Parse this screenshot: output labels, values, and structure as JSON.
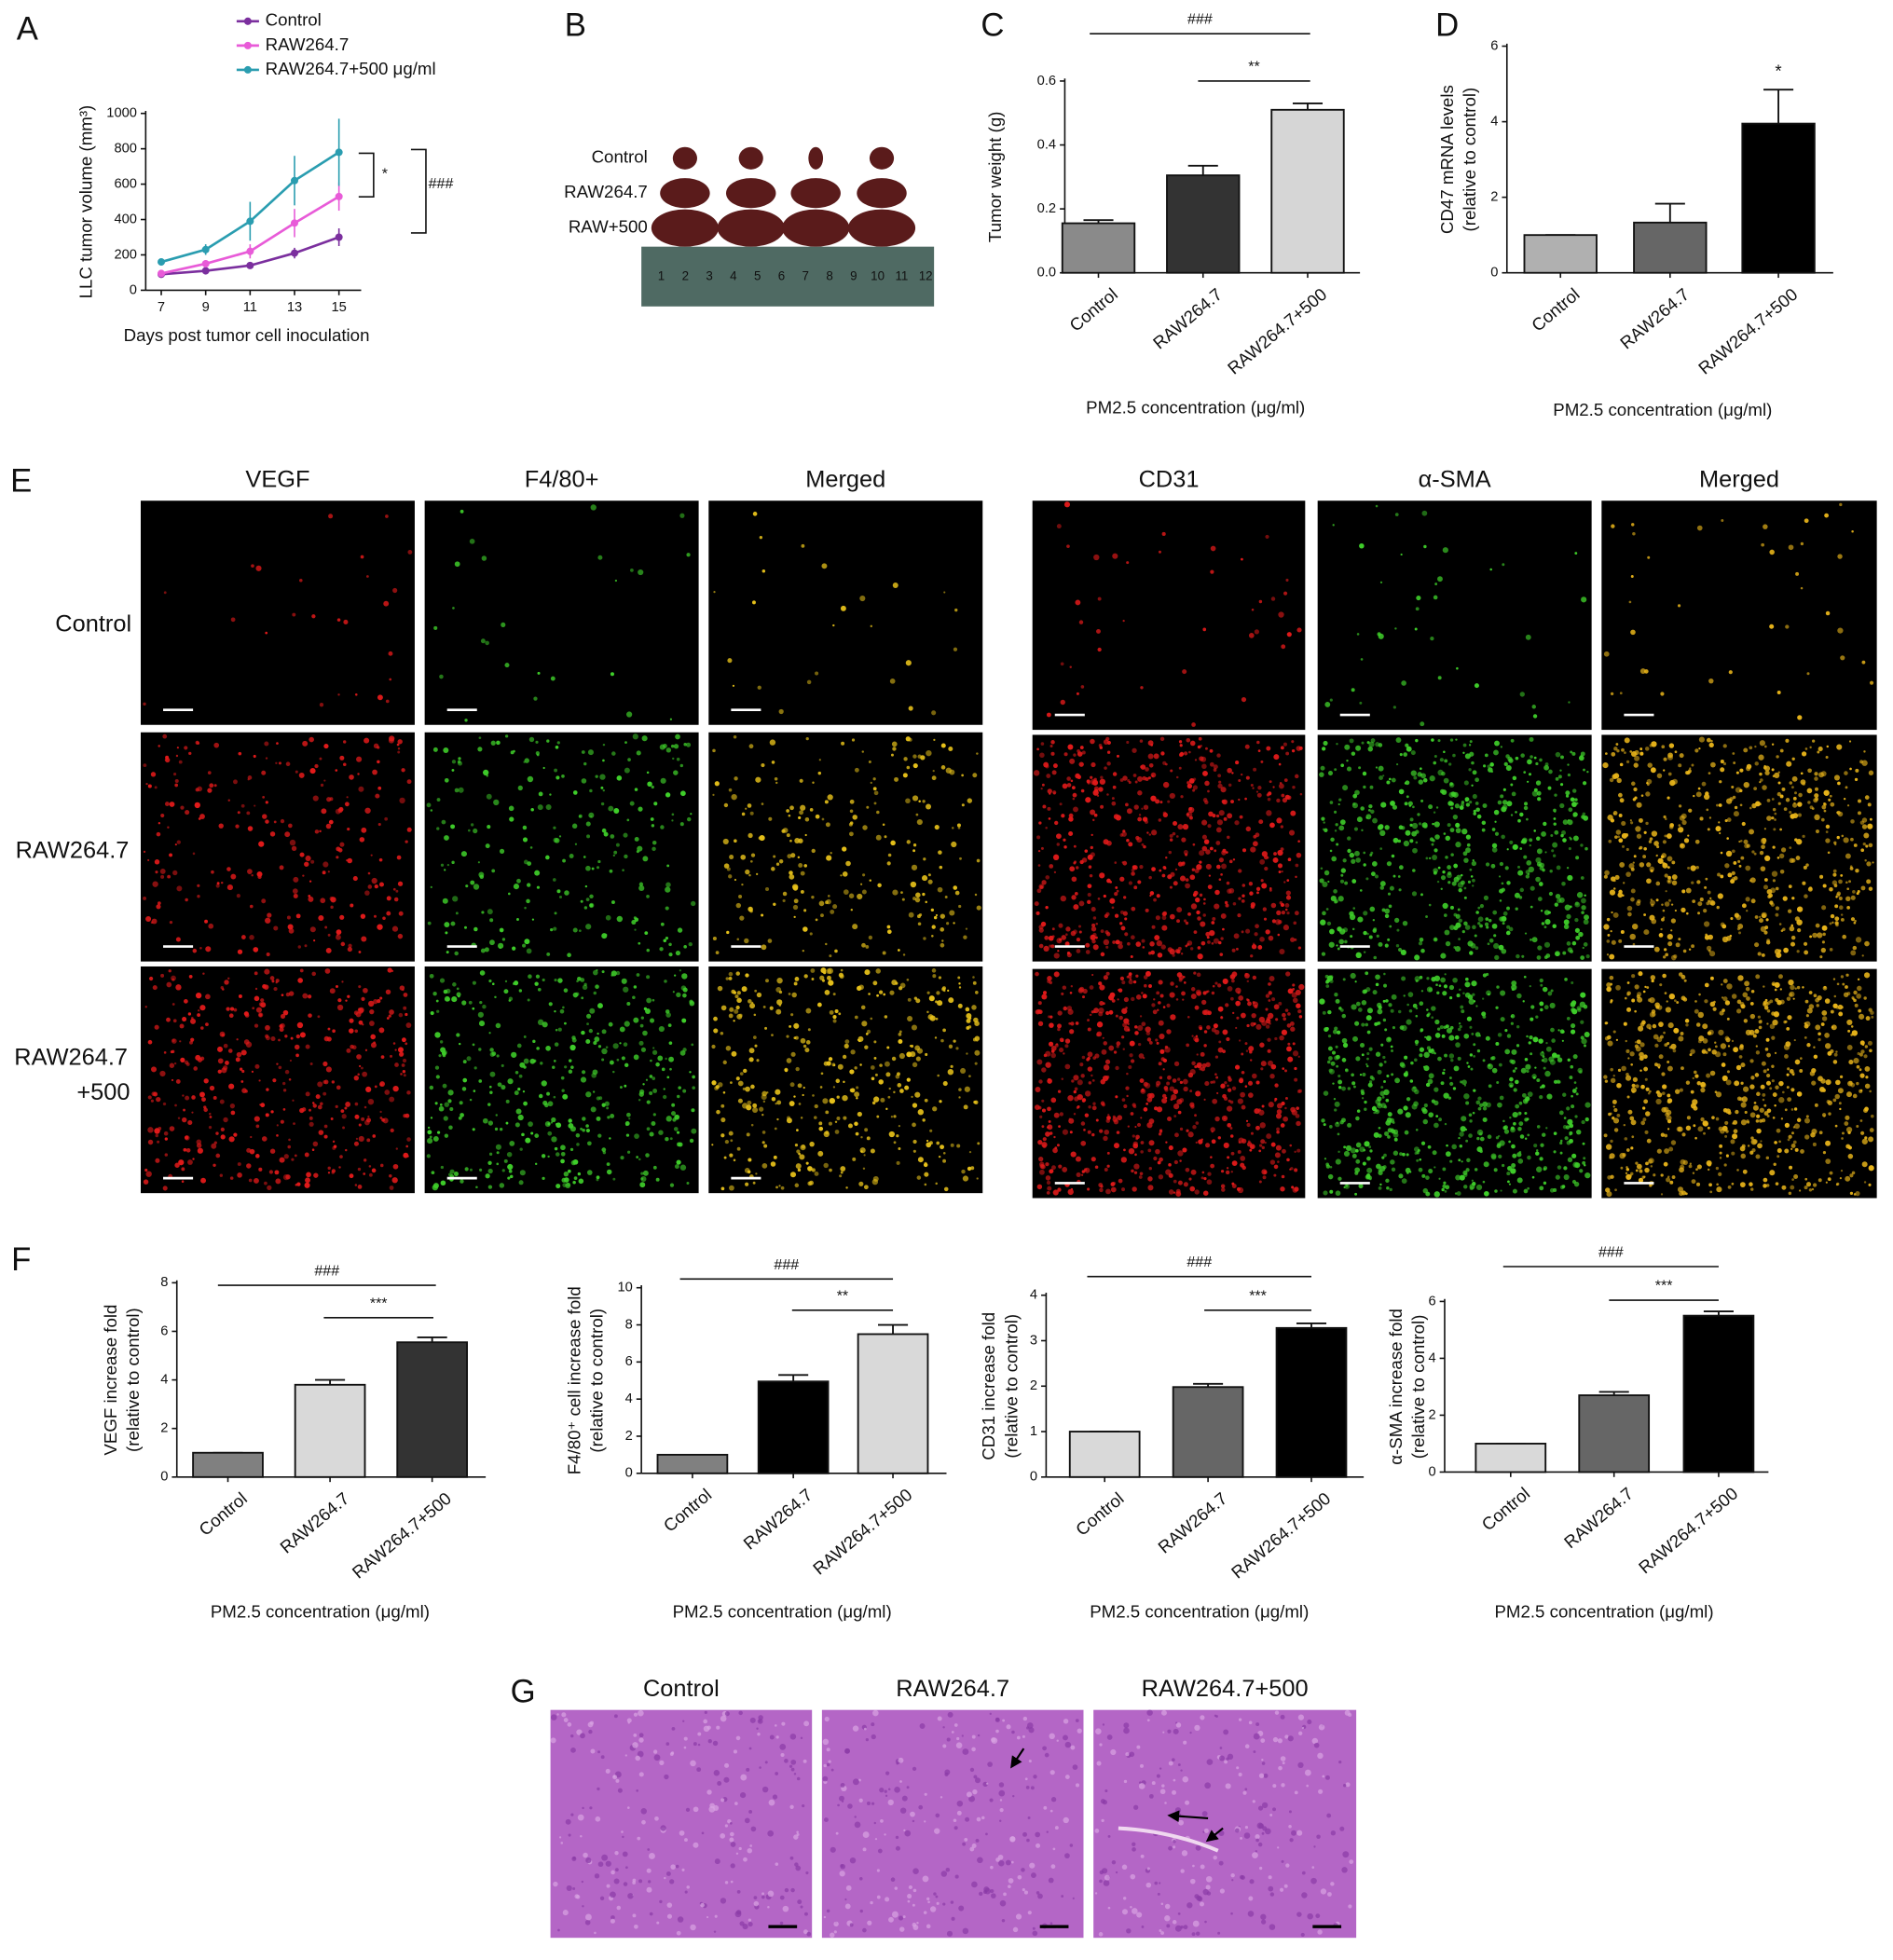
{
  "panel_labels": [
    "A",
    "B",
    "C",
    "D",
    "E",
    "F",
    "G"
  ],
  "chart_data": [
    {
      "type": "line",
      "ylabel": [
        "LLC tumor volume (mm³)"
      ],
      "xlabel": "Days post tumor cell inoculation",
      "x": [
        7,
        9,
        11,
        13,
        15
      ],
      "xlim": [
        6.3,
        16
      ],
      "xticks": [
        7,
        9,
        11,
        13,
        15
      ],
      "ylim": [
        0,
        1000
      ],
      "yticks": [
        0,
        200,
        400,
        600,
        800,
        1000
      ],
      "series": [
        {
          "name": "Control",
          "color": "#7b2f9e",
          "values": [
            90,
            110,
            140,
            210,
            300
          ],
          "errors": [
            10,
            15,
            15,
            30,
            50
          ]
        },
        {
          "name": "RAW264.7",
          "color": "#e85bd8",
          "values": [
            95,
            150,
            220,
            380,
            530
          ],
          "errors": [
            15,
            20,
            40,
            80,
            80
          ]
        },
        {
          "name": "RAW264.7+500 μg/ml",
          "color": "#2a9db0",
          "values": [
            160,
            230,
            390,
            620,
            780
          ],
          "errors": [
            20,
            30,
            110,
            140,
            190
          ]
        }
      ],
      "annotations": [
        "*",
        "###"
      ]
    },
    {
      "type": "bar",
      "ylabel": [
        "Tumor weight (g)"
      ],
      "xlabel": "PM2.5 concentration (μg/ml)",
      "categories": [
        "Control",
        "RAW264.7",
        "RAW264.7+500"
      ],
      "values": [
        0.155,
        0.305,
        0.51
      ],
      "errors": [
        0.01,
        0.03,
        0.02
      ],
      "colors": [
        "#8a8a8a",
        "#333333",
        "#d6d6d6"
      ],
      "ylim": [
        0,
        0.6
      ],
      "yticks": [
        {
          "value": 0,
          "label": "0.0"
        },
        0.2,
        0.4,
        0.6
      ],
      "annotations": [
        "###",
        "**"
      ]
    },
    {
      "type": "bar",
      "ylabel": [
        "CD47 mRNA levels",
        "(relative to control)"
      ],
      "xlabel": "PM2.5 concentration (μg/ml)",
      "categories": [
        "Control",
        "RAW264.7",
        "RAW264.7+500"
      ],
      "values": [
        1,
        1.33,
        3.95
      ],
      "errors": [
        0,
        0.5,
        0.9
      ],
      "colors": [
        "#b0b0b0",
        "#666666",
        "#000000"
      ],
      "ylim": [
        0,
        6
      ],
      "yticks": [
        0,
        2,
        4,
        6
      ],
      "annotations": [
        "*"
      ]
    },
    {
      "type": "bar",
      "ylabel": [
        "VEGF increase fold",
        "(relative to control)"
      ],
      "xlabel": "PM2.5 concentration (μg/ml)",
      "categories": [
        "Control",
        "RAW264.7",
        "RAW264.7+500"
      ],
      "values": [
        1,
        3.8,
        5.55
      ],
      "errors": [
        0,
        0.2,
        0.2
      ],
      "colors": [
        "#808080",
        "#d9d9d9",
        "#333333"
      ],
      "ylim": [
        0,
        8
      ],
      "yticks": [
        0,
        2,
        4,
        6,
        8
      ],
      "annotations": [
        "###",
        "***"
      ]
    },
    {
      "type": "bar",
      "ylabel": [
        "F4/80⁺ cell increase fold",
        "(relative to control)"
      ],
      "xlabel": "PM2.5 concentration (μg/ml)",
      "categories": [
        "Control",
        "RAW264.7",
        "RAW264.7+500"
      ],
      "values": [
        1,
        4.95,
        7.5
      ],
      "errors": [
        0,
        0.35,
        0.5
      ],
      "colors": [
        "#808080",
        "#000000",
        "#d9d9d9"
      ],
      "ylim": [
        0,
        10
      ],
      "yticks": [
        0,
        2,
        4,
        6,
        8,
        10
      ],
      "annotations": [
        "###",
        "**"
      ]
    },
    {
      "type": "bar",
      "ylabel": [
        "CD31 increase fold",
        "(relative to control)"
      ],
      "xlabel": "PM2.5 concentration (μg/ml)",
      "categories": [
        "Control",
        "RAW264.7",
        "RAW264.7+500"
      ],
      "values": [
        1,
        1.98,
        3.28
      ],
      "errors": [
        0,
        0.07,
        0.1
      ],
      "colors": [
        "#d9d9d9",
        "#666666",
        "#000000"
      ],
      "ylim": [
        0,
        4
      ],
      "yticks": [
        0,
        1,
        2,
        3,
        4
      ],
      "annotations": [
        "###",
        "***"
      ]
    },
    {
      "type": "bar",
      "ylabel": [
        "α-SMA increase fold",
        "(relative to control)"
      ],
      "xlabel": "PM2.5 concentration (μg/ml)",
      "categories": [
        "Control",
        "RAW264.7",
        "RAW264.7+500"
      ],
      "values": [
        1,
        2.7,
        5.5
      ],
      "errors": [
        0,
        0.12,
        0.15
      ],
      "colors": [
        "#d9d9d9",
        "#666666",
        "#000000"
      ],
      "ylim": [
        0,
        6
      ],
      "yticks": [
        0,
        2,
        4,
        6
      ],
      "annotations": [
        "###",
        "***"
      ]
    }
  ],
  "panel_b": {
    "row_labels": [
      "Control",
      "RAW264.7",
      "RAW+500"
    ],
    "ruler": [
      "1",
      "2",
      "3",
      "4",
      "5",
      "6",
      "7",
      "8",
      "9",
      "10",
      "11",
      "12"
    ]
  },
  "panel_e": {
    "column_labels": [
      "VEGF",
      "F4/80+",
      "Merged",
      "CD31",
      "α-SMA",
      "Merged"
    ],
    "row_labels": [
      [
        "Control"
      ],
      [
        "RAW264.7"
      ],
      [
        "RAW264.7",
        "+500"
      ]
    ]
  },
  "panel_g": {
    "column_labels": [
      "Control",
      "RAW264.7",
      "RAW264.7+500"
    ]
  }
}
